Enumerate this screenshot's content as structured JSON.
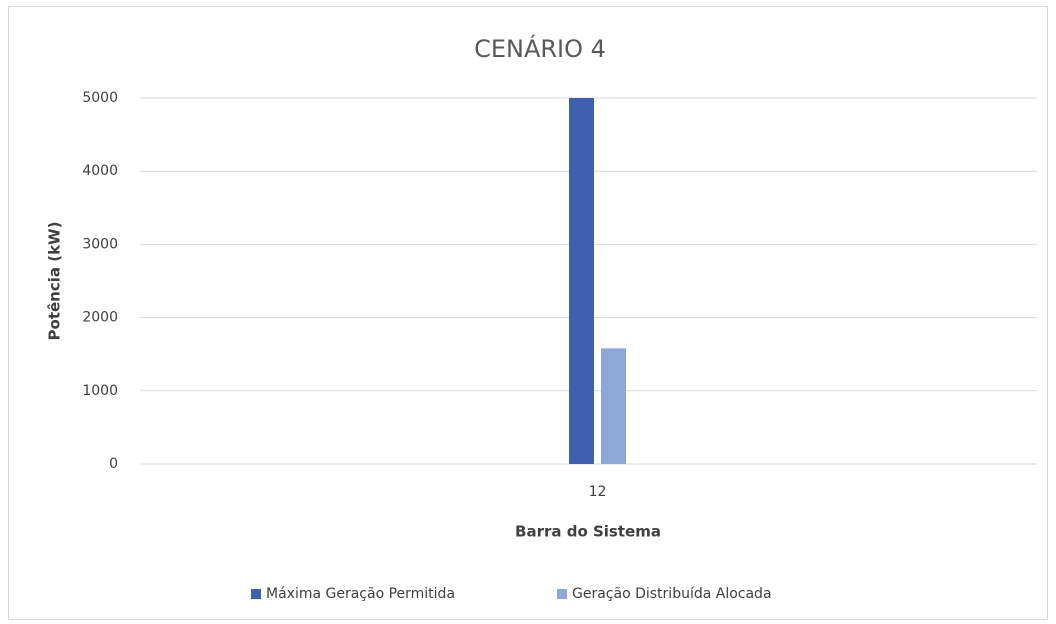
{
  "chart_data": {
    "type": "bar",
    "title": "CENÁRIO 4",
    "x_label": "Barra do Sistema",
    "y_label": "Potência (kW)",
    "categories": [
      "12"
    ],
    "series": [
      {
        "name": "Máxima Geração Permitida",
        "color": "#3f60ac",
        "values": [
          5000
        ]
      },
      {
        "name": "Geração Distribuída Alocada",
        "color": "#8fa6d9",
        "values": [
          1580
        ]
      }
    ],
    "ylim": [
      0,
      5000
    ],
    "yticks": [
      0,
      1000,
      2000,
      3000,
      4000,
      5000
    ],
    "grid": true,
    "legend": "bottom"
  }
}
